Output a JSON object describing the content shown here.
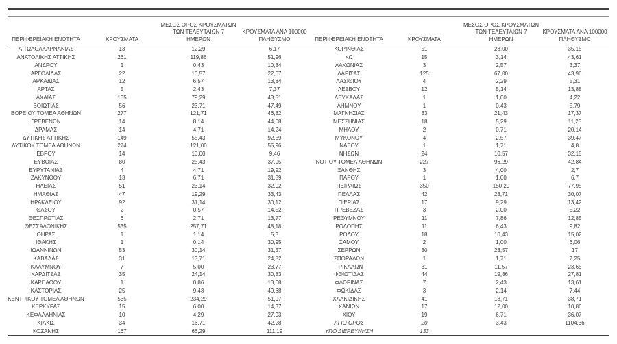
{
  "colors": {
    "background": "#ffffff",
    "text": "#3f3f3f",
    "rule_dark": "#3e3e3e",
    "rule_gray": "#909090"
  },
  "column_headers": {
    "region": "ΠΕΡΙΦΕΡΕΙΑΚΗ ΕΝΟΤΗΤΑ",
    "cases": "ΚΡΟΥΣΜΑΤΑ",
    "avg7_line1": "ΜΕΣΟΣ ΟΡΟΣ ΚΡΟΥΣΜΑΤΩΝ",
    "avg7_line2": "ΤΩΝ ΤΕΛΕΥΤΑΙΩΝ 7",
    "avg7_line3": "ΗΜΕΡΩΝ",
    "per100k_line1": "ΚΡΟΥΣΜΑΤΑ ΑΝΑ 100000",
    "per100k_line2": "ΠΛΗΘΥΣΜΟ"
  },
  "tables": [
    {
      "rows": [
        {
          "region": "ΑΙΤΩΛΟΑΚΑΡΝΑΝΙΑΣ",
          "cases": "13",
          "avg7": "12,29",
          "per100k": "6,17"
        },
        {
          "region": "ΑΝΑΤΟΛΙΚΗΣ ΑΤΤΙΚΗΣ",
          "cases": "261",
          "avg7": "119,86",
          "per100k": "51,96"
        },
        {
          "region": "ΑΝΔΡΟΥ",
          "cases": "1",
          "avg7": "0,43",
          "per100k": "10,84"
        },
        {
          "region": "ΑΡΓΟΛΙΔΑΣ",
          "cases": "22",
          "avg7": "10,57",
          "per100k": "22,67"
        },
        {
          "region": "ΑΡΚΑΔΙΑΣ",
          "cases": "12",
          "avg7": "6,57",
          "per100k": "13,84"
        },
        {
          "region": "ΑΡΤΑΣ",
          "cases": "5",
          "avg7": "2,43",
          "per100k": "7,37"
        },
        {
          "region": "ΑΧΑΪΑΣ",
          "cases": "135",
          "avg7": "79,29",
          "per100k": "43,51"
        },
        {
          "region": "ΒΟΙΩΤΙΑΣ",
          "cases": "56",
          "avg7": "23,71",
          "per100k": "47,49"
        },
        {
          "region": "ΒΟΡΕΙΟΥ ΤΟΜΕΑ ΑΘΗΝΩΝ",
          "cases": "277",
          "avg7": "121,71",
          "per100k": "46,82"
        },
        {
          "region": "ΓΡΕΒΕΝΩΝ",
          "cases": "14",
          "avg7": "8,14",
          "per100k": "44,08"
        },
        {
          "region": "ΔΡΑΜΑΣ",
          "cases": "14",
          "avg7": "4,71",
          "per100k": "14,24"
        },
        {
          "region": "ΔΥΤΙΚΗΣ ΑΤΤΙΚΗΣ",
          "cases": "149",
          "avg7": "55,43",
          "per100k": "92,59"
        },
        {
          "region": "ΔΥΤΙΚΟΥ ΤΟΜΕΑ ΑΘΗΝΩΝ",
          "cases": "274",
          "avg7": "121,00",
          "per100k": "55,96"
        },
        {
          "region": "ΕΒΡΟΥ",
          "cases": "14",
          "avg7": "10,00",
          "per100k": "9,46"
        },
        {
          "region": "ΕΥΒΟΙΑΣ",
          "cases": "80",
          "avg7": "25,43",
          "per100k": "37,95"
        },
        {
          "region": "ΕΥΡΥΤΑΝΙΑΣ",
          "cases": "4",
          "avg7": "4,71",
          "per100k": "19,92"
        },
        {
          "region": "ΖΑΚΥΝΘΟΥ",
          "cases": "13",
          "avg7": "6,71",
          "per100k": "31,89"
        },
        {
          "region": "ΗΛΕΙΑΣ",
          "cases": "51",
          "avg7": "23,14",
          "per100k": "32,02"
        },
        {
          "region": "ΗΜΑΘΙΑΣ",
          "cases": "47",
          "avg7": "19,29",
          "per100k": "33,43"
        },
        {
          "region": "ΗΡΑΚΛΕΙΟΥ",
          "cases": "92",
          "avg7": "31,14",
          "per100k": "30,12"
        },
        {
          "region": "ΘΑΣΟΥ",
          "cases": "2",
          "avg7": "0,57",
          "per100k": "14,52"
        },
        {
          "region": "ΘΕΣΠΡΩΤΙΑΣ",
          "cases": "6",
          "avg7": "2,71",
          "per100k": "13,77"
        },
        {
          "region": "ΘΕΣΣΑΛΟΝΙΚΗΣ",
          "cases": "535",
          "avg7": "257,71",
          "per100k": "48,18"
        },
        {
          "region": "ΘΗΡΑΣ",
          "cases": "1",
          "avg7": "1,14",
          "per100k": "5,3"
        },
        {
          "region": "ΙΘΑΚΗΣ",
          "cases": "1",
          "avg7": "0,14",
          "per100k": "30,95"
        },
        {
          "region": "ΙΩΑΝΝΙΝΩΝ",
          "cases": "53",
          "avg7": "30,14",
          "per100k": "31,57"
        },
        {
          "region": "ΚΑΒΑΛΑΣ",
          "cases": "31",
          "avg7": "13,71",
          "per100k": "24,82"
        },
        {
          "region": "ΚΑΛΥΜΝΟΥ",
          "cases": "7",
          "avg7": "5,00",
          "per100k": "23,77"
        },
        {
          "region": "ΚΑΡΔΙΤΣΑΣ",
          "cases": "35",
          "avg7": "24,14",
          "per100k": "30,83"
        },
        {
          "region": "ΚΑΡΠΑΘΟΥ",
          "cases": "1",
          "avg7": "0,86",
          "per100k": "13,68"
        },
        {
          "region": "ΚΑΣΤΟΡΙΑΣ",
          "cases": "25",
          "avg7": "9,43",
          "per100k": "49,68"
        },
        {
          "region": "ΚΕΝΤΡΙΚΟΥ ΤΟΜΕΑ ΑΘΗΝΩΝ",
          "cases": "535",
          "avg7": "234,29",
          "per100k": "51,97"
        },
        {
          "region": "ΚΕΡΚΥΡΑΣ",
          "cases": "15",
          "avg7": "6,00",
          "per100k": "14,37"
        },
        {
          "region": "ΚΕΦΑΛΛΗΝΙΑΣ",
          "cases": "10",
          "avg7": "4,29",
          "per100k": "27,93"
        },
        {
          "region": "ΚΙΛΚΙΣ",
          "cases": "34",
          "avg7": "16,71",
          "per100k": "42,28"
        },
        {
          "region": "ΚΟΖΑΝΗΣ",
          "cases": "167",
          "avg7": "66,29",
          "per100k": "111,19"
        }
      ]
    },
    {
      "rows": [
        {
          "region": "ΚΟΡΙΝΘΙΑΣ",
          "cases": "51",
          "avg7": "28,00",
          "per100k": "35,15"
        },
        {
          "region": "ΚΩ",
          "cases": "15",
          "avg7": "3,14",
          "per100k": "43,61"
        },
        {
          "region": "ΛΑΚΩΝΙΑΣ",
          "cases": "3",
          "avg7": "2,57",
          "per100k": "3,37"
        },
        {
          "region": "ΛΑΡΙΣΑΣ",
          "cases": "125",
          "avg7": "67,00",
          "per100k": "43,96"
        },
        {
          "region": "ΛΑΣΙΘΙΟΥ",
          "cases": "4",
          "avg7": "2,29",
          "per100k": "5,31"
        },
        {
          "region": "ΛΕΣΒΟΥ",
          "cases": "12",
          "avg7": "5,14",
          "per100k": "13,88"
        },
        {
          "region": "ΛΕΥΚΑΔΑΣ",
          "cases": "1",
          "avg7": "1,00",
          "per100k": "4,22"
        },
        {
          "region": "ΛΗΜΝΟΥ",
          "cases": "1",
          "avg7": "0,43",
          "per100k": "5,79"
        },
        {
          "region": "ΜΑΓΝΗΣΙΑΣ",
          "cases": "33",
          "avg7": "21,43",
          "per100k": "17,37"
        },
        {
          "region": "ΜΕΣΣΗΝΙΑΣ",
          "cases": "18",
          "avg7": "5,29",
          "per100k": "11,25"
        },
        {
          "region": "ΜΗΛΟΥ",
          "cases": "2",
          "avg7": "0,71",
          "per100k": "20,14"
        },
        {
          "region": "ΜΥΚΟΝΟΥ",
          "cases": "4",
          "avg7": "2,57",
          "per100k": "39,47"
        },
        {
          "region": "ΝΑΞΟΥ",
          "cases": "1",
          "avg7": "1,71",
          "per100k": "4,8"
        },
        {
          "region": "ΝΗΣΩΝ",
          "cases": "24",
          "avg7": "10,57",
          "per100k": "32,15"
        },
        {
          "region": "ΝΟΤΙΟΥ ΤΟΜΕΑ ΑΘΗΝΩΝ",
          "cases": "227",
          "avg7": "96,29",
          "per100k": "42,84"
        },
        {
          "region": "ΞΑΝΘΗΣ",
          "cases": "3",
          "avg7": "4,00",
          "per100k": "2,7"
        },
        {
          "region": "ΠΑΡΟΥ",
          "cases": "1",
          "avg7": "1,00",
          "per100k": "6,7"
        },
        {
          "region": "ΠΕΙΡΑΙΩΣ",
          "cases": "350",
          "avg7": "150,29",
          "per100k": "77,95"
        },
        {
          "region": "ΠΕΛΛΑΣ",
          "cases": "42",
          "avg7": "23,71",
          "per100k": "30,07"
        },
        {
          "region": "ΠΙΕΡΙΑΣ",
          "cases": "17",
          "avg7": "9,29",
          "per100k": "13,42"
        },
        {
          "region": "ΠΡΕΒΕΖΑΣ",
          "cases": "3",
          "avg7": "2,00",
          "per100k": "5,22"
        },
        {
          "region": "ΡΕΘΥΜΝΟΥ",
          "cases": "11",
          "avg7": "7,86",
          "per100k": "12,85"
        },
        {
          "region": "ΡΟΔΟΠΗΣ",
          "cases": "11",
          "avg7": "6,43",
          "per100k": "9,82"
        },
        {
          "region": "ΡΟΔΟΥ",
          "cases": "18",
          "avg7": "10,43",
          "per100k": "15,02"
        },
        {
          "region": "ΣΑΜΟΥ",
          "cases": "2",
          "avg7": "1,00",
          "per100k": "6,06"
        },
        {
          "region": "ΣΕΡΡΩΝ",
          "cases": "30",
          "avg7": "23,57",
          "per100k": "17"
        },
        {
          "region": "ΣΠΟΡΑΔΩΝ",
          "cases": "1",
          "avg7": "1,71",
          "per100k": "7,25"
        },
        {
          "region": "ΤΡΙΚΑΛΩΝ",
          "cases": "31",
          "avg7": "11,57",
          "per100k": "23,65"
        },
        {
          "region": "ΦΘΙΩΤΙΔΑΣ",
          "cases": "44",
          "avg7": "19,86",
          "per100k": "27,81"
        },
        {
          "region": "ΦΛΩΡΙΝΑΣ",
          "cases": "7",
          "avg7": "2,43",
          "per100k": "13,61"
        },
        {
          "region": "ΦΩΚΙΔΑΣ",
          "cases": "3",
          "avg7": "2,14",
          "per100k": "7,44"
        },
        {
          "region": "ΧΑΛΚΙΔΙΚΗΣ",
          "cases": "41",
          "avg7": "13,71",
          "per100k": "38,71"
        },
        {
          "region": "ΧΑΝΙΩΝ",
          "cases": "17",
          "avg7": "12,00",
          "per100k": "10,86"
        },
        {
          "region": "ΧΙΟΥ",
          "cases": "19",
          "avg7": "6,71",
          "per100k": "36,07"
        },
        {
          "region": "ΑΓΙΟ ΟΡΟΣ",
          "cases": "20",
          "avg7": "3,43",
          "per100k": "1104,36",
          "italic": true
        },
        {
          "region": "ΥΠΟ ΔΙΕΡΕΥΝΗΣΗ",
          "cases": "133",
          "avg7": "",
          "per100k": "",
          "italic": true
        }
      ]
    }
  ]
}
